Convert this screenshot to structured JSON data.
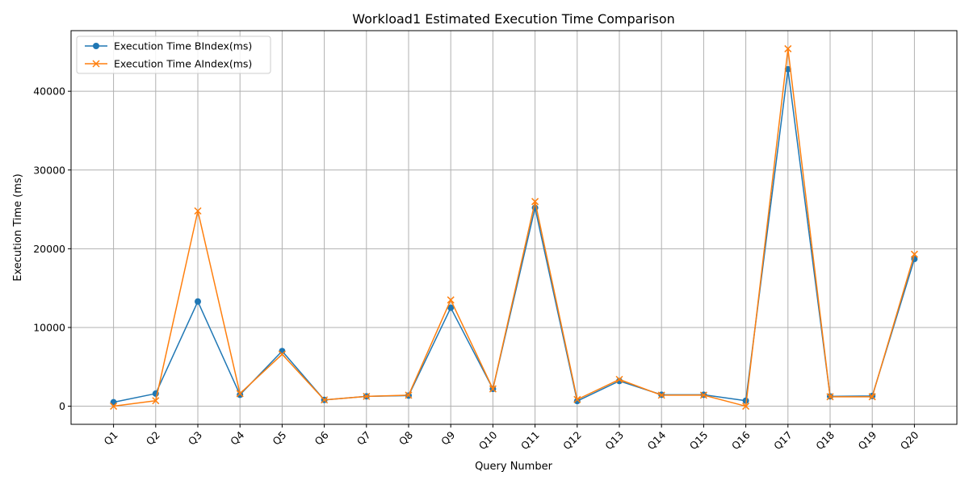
{
  "chart_data": {
    "type": "line",
    "title": "Workload1 Estimated Execution Time Comparison",
    "xlabel": "Query Number",
    "ylabel": "Execution Time (ms)",
    "categories": [
      "Q1",
      "Q2",
      "Q3",
      "Q4",
      "Q5",
      "Q6",
      "Q7",
      "Q8",
      "Q9",
      "Q10",
      "Q11",
      "Q12",
      "Q13",
      "Q14",
      "Q15",
      "Q16",
      "Q17",
      "Q18",
      "Q19",
      "Q20"
    ],
    "ylim": [
      -2300,
      47700
    ],
    "yticks": [
      0,
      10000,
      20000,
      30000,
      40000
    ],
    "grid": true,
    "legend_position": "top-left",
    "series": [
      {
        "name": "Execution Time BIndex(ms)",
        "color": "#1f77b4",
        "marker": "circle",
        "values": [
          500,
          1600,
          13300,
          1450,
          7000,
          800,
          1250,
          1350,
          12500,
          2200,
          25200,
          650,
          3200,
          1450,
          1450,
          700,
          42800,
          1250,
          1300,
          18700
        ]
      },
      {
        "name": "Execution Time AIndex(ms)",
        "color": "#ff7f0e",
        "marker": "x",
        "values": [
          0,
          700,
          24800,
          1600,
          6600,
          800,
          1250,
          1400,
          13500,
          2200,
          26000,
          850,
          3400,
          1400,
          1400,
          0,
          45400,
          1200,
          1200,
          19300
        ]
      }
    ]
  }
}
